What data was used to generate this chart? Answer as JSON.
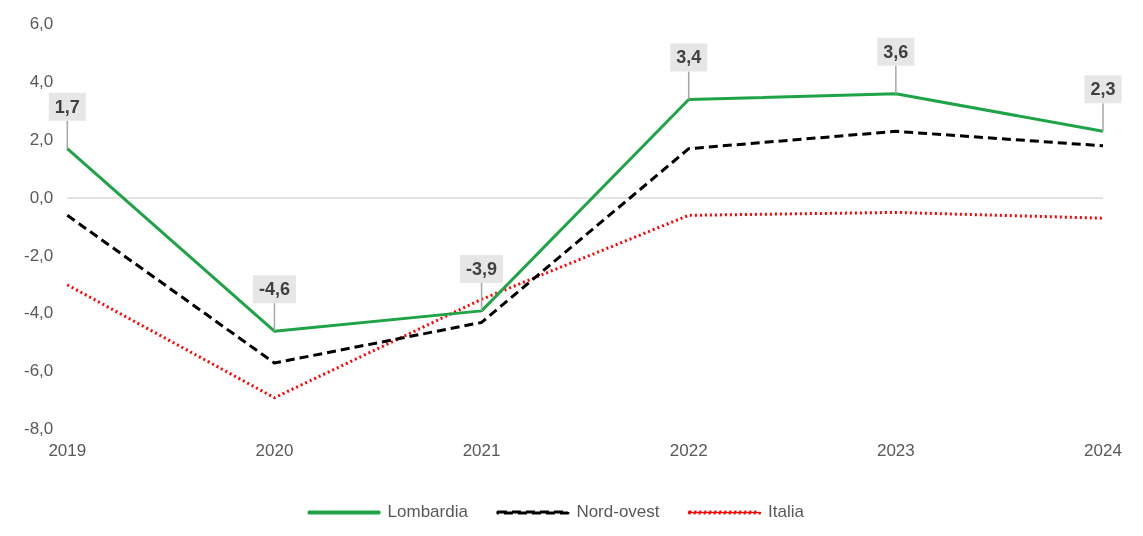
{
  "chart_data": {
    "type": "line",
    "categories": [
      "2019",
      "2020",
      "2021",
      "2022",
      "2023",
      "2024"
    ],
    "series": [
      {
        "name": "Lombardia",
        "color": "#1ea446",
        "line_style": "solid",
        "values": [
          1.7,
          -4.6,
          -3.9,
          3.4,
          3.6,
          2.3
        ],
        "value_labels": [
          "1,7",
          "-4,6",
          "-3,9",
          "3,4",
          "3,6",
          "2,3"
        ]
      },
      {
        "name": "Nord-ovest",
        "color": "#000000",
        "line_style": "dashed",
        "values": [
          -0.6,
          -5.7,
          -4.3,
          1.7,
          2.3,
          1.8
        ]
      },
      {
        "name": "Italia",
        "color": "#ff0000",
        "line_style": "dotted",
        "values": [
          -3.0,
          -6.9,
          -3.5,
          -0.6,
          -0.5,
          -0.7
        ]
      }
    ],
    "ylim": [
      -8,
      6
    ],
    "yticks": [
      {
        "value": -8,
        "label": "-8,0"
      },
      {
        "value": -6,
        "label": "-6,0"
      },
      {
        "value": -4,
        "label": "-4,0"
      },
      {
        "value": -2,
        "label": "-2,0"
      },
      {
        "value": 0,
        "label": "0,0"
      },
      {
        "value": 2,
        "label": "2,0"
      },
      {
        "value": 4,
        "label": "4,0"
      },
      {
        "value": 6,
        "label": "6,0"
      }
    ],
    "ref_lines": [
      {
        "axis": "y",
        "value": 0,
        "color": "#d9d9d9"
      }
    ],
    "grid": false,
    "legend": "bottom",
    "marker": "none"
  }
}
